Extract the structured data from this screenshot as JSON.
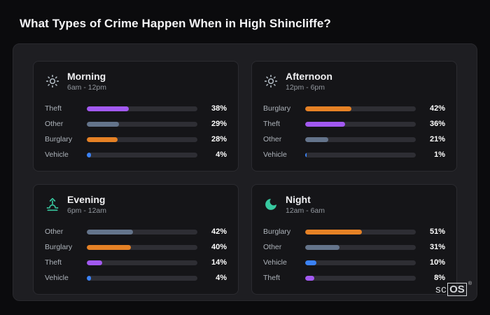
{
  "page": {
    "title": "What Types of Crime Happen When in High Shincliffe?"
  },
  "brand": {
    "prefix": "sc",
    "suffix": "OS",
    "reg": "®"
  },
  "colors": {
    "background": "#0b0b0d",
    "panel": "#1e1e22",
    "card": "#151518",
    "bar_track": "#2e2e34",
    "series": {
      "theft": "#a259f0",
      "other": "#64748b",
      "burglary": "#e58125",
      "vehicle": "#3b82f6"
    },
    "icons": {
      "morning": "#a9b2ba",
      "afternoon": "#a9b2ba",
      "evening": "#38c9a0",
      "night": "#38c9a0"
    }
  },
  "cards": [
    {
      "id": "morning",
      "title": "Morning",
      "subtitle": "6am - 12pm",
      "icon": "sun-icon",
      "icon_glyph": "sun",
      "rows": [
        {
          "label": "Theft",
          "value": 38,
          "display": "38%",
          "color_key": "theft"
        },
        {
          "label": "Other",
          "value": 29,
          "display": "29%",
          "color_key": "other"
        },
        {
          "label": "Burglary",
          "value": 28,
          "display": "28%",
          "color_key": "burglary"
        },
        {
          "label": "Vehicle",
          "value": 4,
          "display": "4%",
          "color_key": "vehicle"
        }
      ]
    },
    {
      "id": "afternoon",
      "title": "Afternoon",
      "subtitle": "12pm - 6pm",
      "icon": "sun-icon",
      "icon_glyph": "sun",
      "rows": [
        {
          "label": "Burglary",
          "value": 42,
          "display": "42%",
          "color_key": "burglary"
        },
        {
          "label": "Theft",
          "value": 36,
          "display": "36%",
          "color_key": "theft"
        },
        {
          "label": "Other",
          "value": 21,
          "display": "21%",
          "color_key": "other"
        },
        {
          "label": "Vehicle",
          "value": 1,
          "display": "1%",
          "color_key": "vehicle"
        }
      ]
    },
    {
      "id": "evening",
      "title": "Evening",
      "subtitle": "6pm - 12am",
      "icon": "sunset-icon",
      "icon_glyph": "sunrise",
      "rows": [
        {
          "label": "Other",
          "value": 42,
          "display": "42%",
          "color_key": "other"
        },
        {
          "label": "Burglary",
          "value": 40,
          "display": "40%",
          "color_key": "burglary"
        },
        {
          "label": "Theft",
          "value": 14,
          "display": "14%",
          "color_key": "theft"
        },
        {
          "label": "Vehicle",
          "value": 4,
          "display": "4%",
          "color_key": "vehicle"
        }
      ]
    },
    {
      "id": "night",
      "title": "Night",
      "subtitle": "12am - 6am",
      "icon": "moon-icon",
      "icon_glyph": "moon",
      "rows": [
        {
          "label": "Burglary",
          "value": 51,
          "display": "51%",
          "color_key": "burglary"
        },
        {
          "label": "Other",
          "value": 31,
          "display": "31%",
          "color_key": "other"
        },
        {
          "label": "Vehicle",
          "value": 10,
          "display": "10%",
          "color_key": "vehicle"
        },
        {
          "label": "Theft",
          "value": 8,
          "display": "8%",
          "color_key": "theft"
        }
      ]
    }
  ],
  "chart_data": [
    {
      "type": "bar",
      "orientation": "horizontal",
      "title": "Morning",
      "subtitle": "6am - 12pm",
      "categories": [
        "Theft",
        "Other",
        "Burglary",
        "Vehicle"
      ],
      "values": [
        38,
        29,
        28,
        4
      ],
      "unit": "%",
      "xlim": [
        0,
        100
      ],
      "grid": false,
      "legend": false
    },
    {
      "type": "bar",
      "orientation": "horizontal",
      "title": "Afternoon",
      "subtitle": "12pm - 6pm",
      "categories": [
        "Burglary",
        "Theft",
        "Other",
        "Vehicle"
      ],
      "values": [
        42,
        36,
        21,
        1
      ],
      "unit": "%",
      "xlim": [
        0,
        100
      ],
      "grid": false,
      "legend": false
    },
    {
      "type": "bar",
      "orientation": "horizontal",
      "title": "Evening",
      "subtitle": "6pm - 12am",
      "categories": [
        "Other",
        "Burglary",
        "Theft",
        "Vehicle"
      ],
      "values": [
        42,
        40,
        14,
        4
      ],
      "unit": "%",
      "xlim": [
        0,
        100
      ],
      "grid": false,
      "legend": false
    },
    {
      "type": "bar",
      "orientation": "horizontal",
      "title": "Night",
      "subtitle": "12am - 6am",
      "categories": [
        "Burglary",
        "Other",
        "Vehicle",
        "Theft"
      ],
      "values": [
        51,
        31,
        10,
        8
      ],
      "unit": "%",
      "xlim": [
        0,
        100
      ],
      "grid": false,
      "legend": false
    }
  ]
}
